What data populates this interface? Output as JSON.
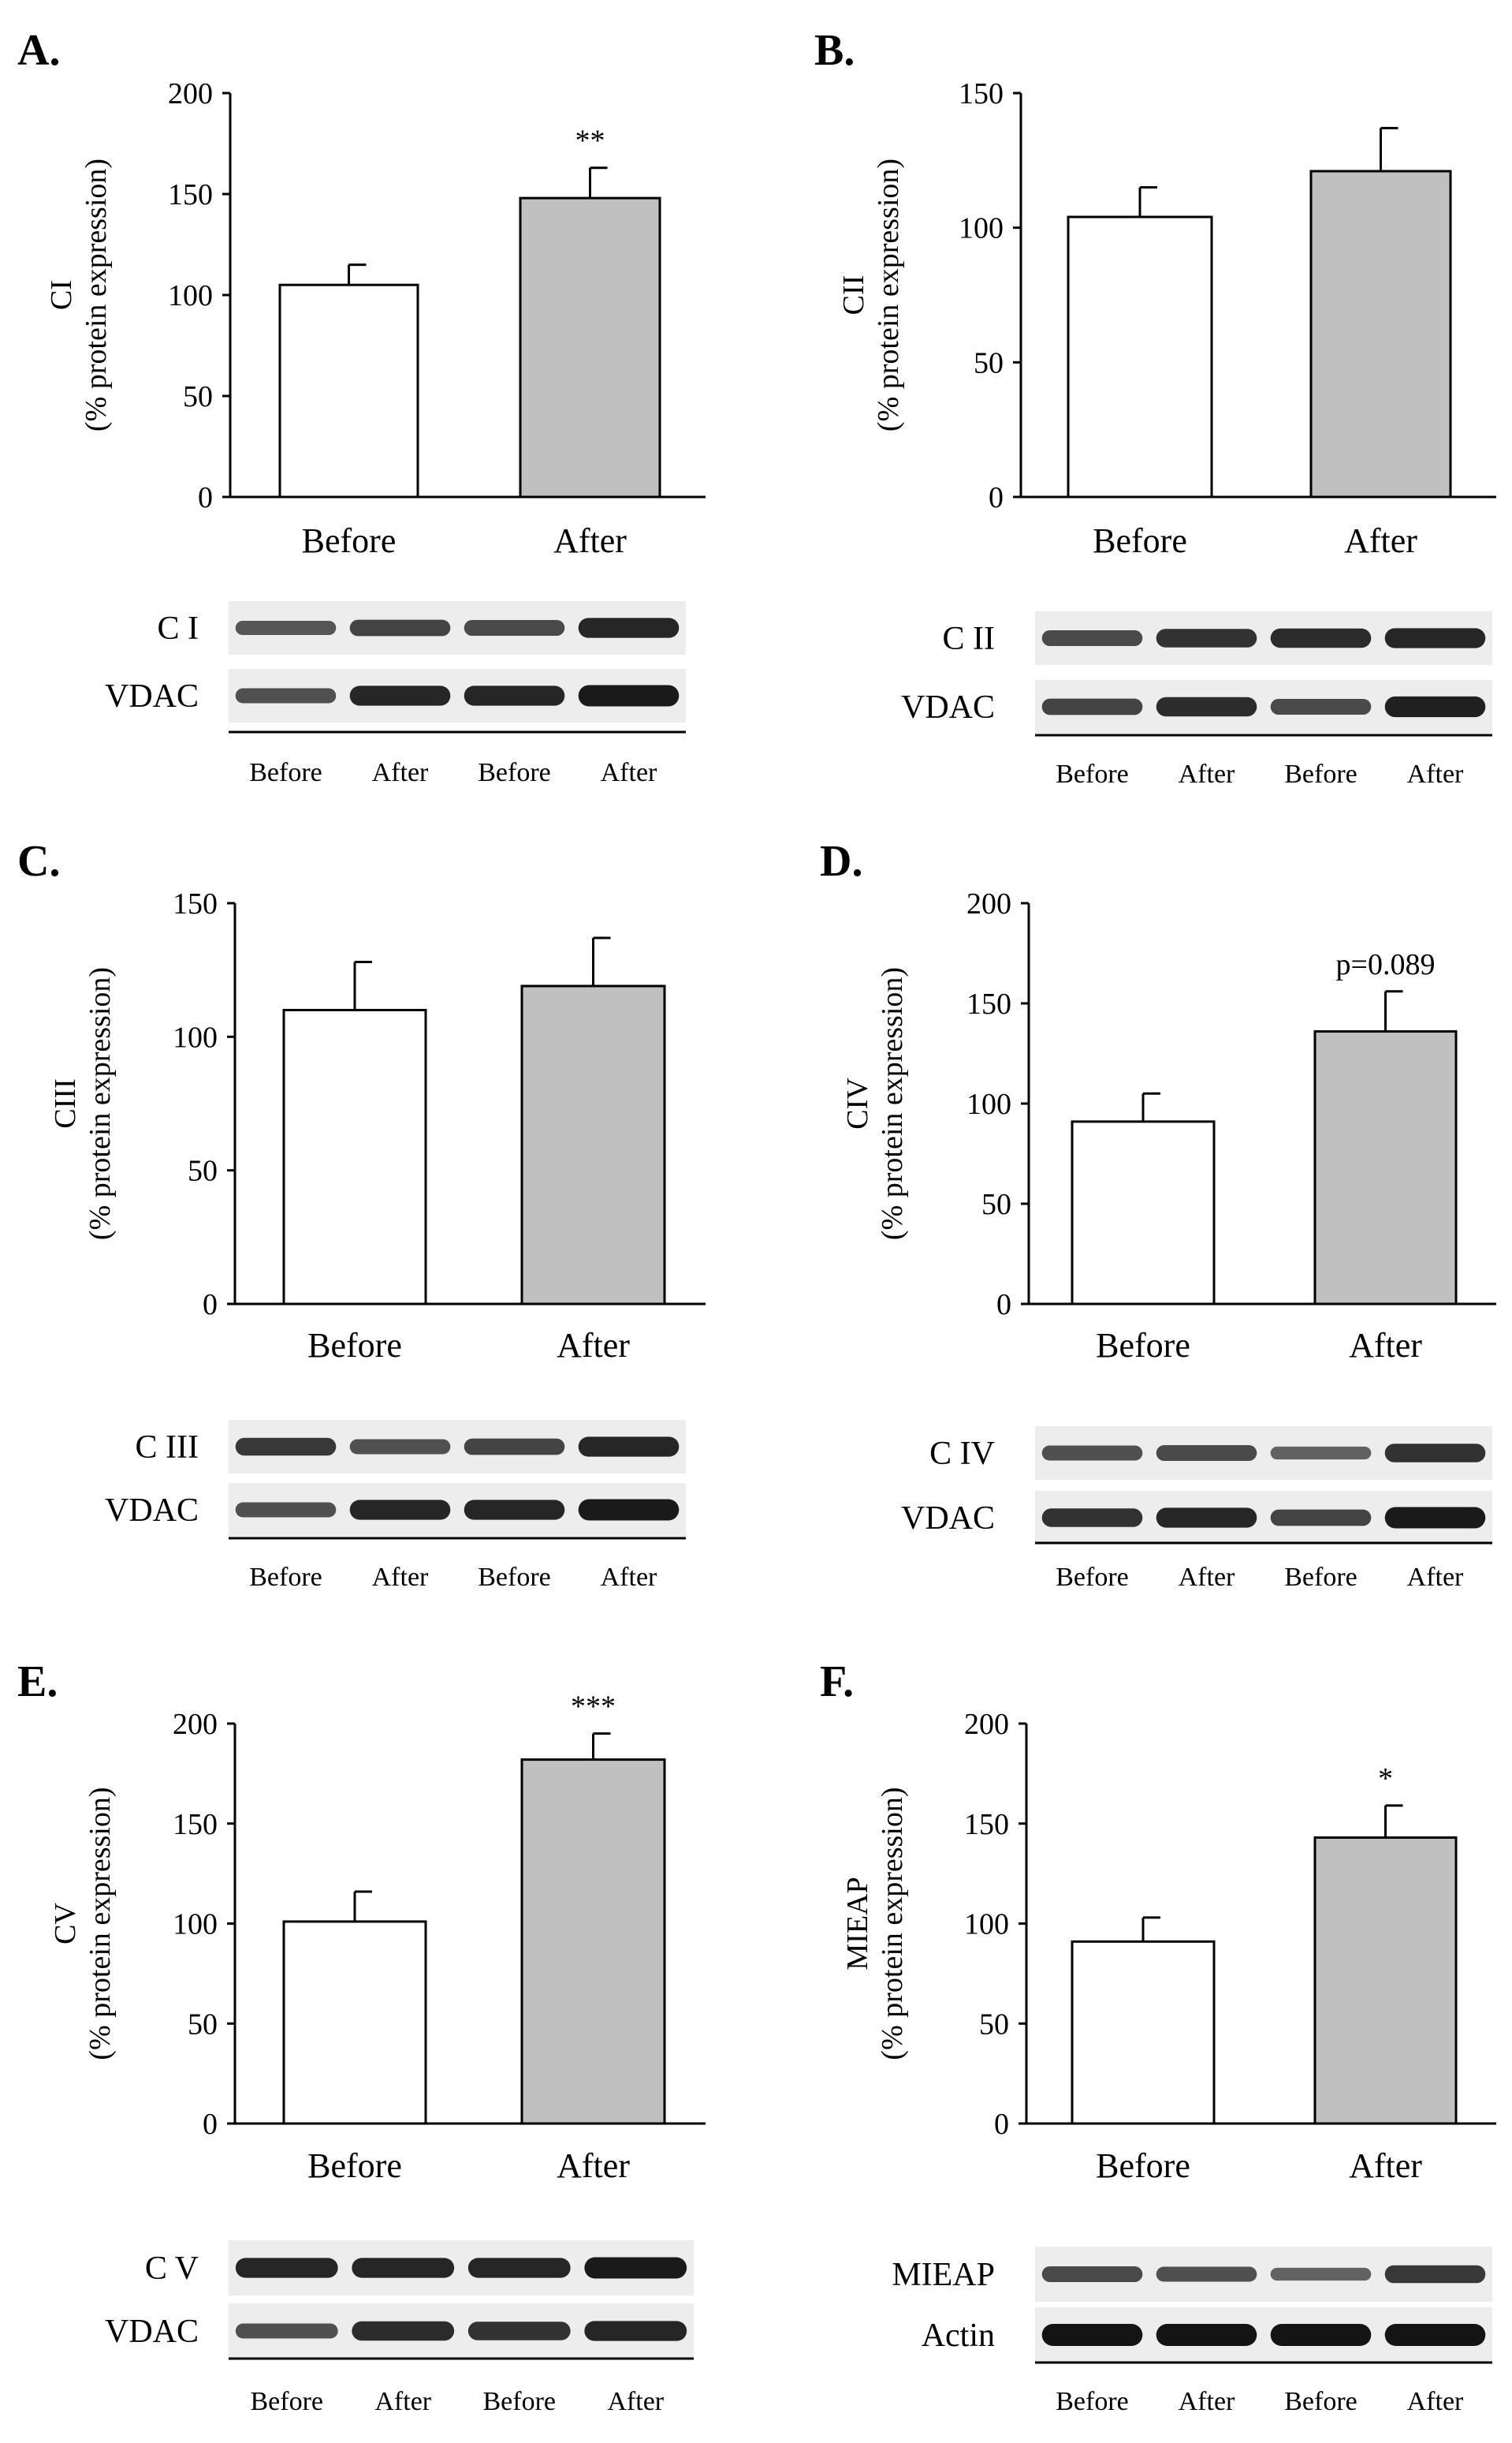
{
  "colors": {
    "before": "#ffffff",
    "after": "#c0c0c0",
    "stroke": "#000000"
  },
  "chart_data": [
    {
      "panel": "A.",
      "type": "bar",
      "ylabel_top": "CI",
      "ylabel_bottom": "(% protein expression)",
      "ylim": [
        0,
        200
      ],
      "yticks": [
        0,
        50,
        100,
        150,
        200
      ],
      "categories": [
        "Before",
        "After"
      ],
      "values": [
        105,
        148
      ],
      "errors": [
        10,
        15
      ],
      "significance": [
        "",
        "**"
      ],
      "blot": {
        "rows": [
          "C I",
          "VDAC"
        ],
        "lanes": [
          "Before",
          "After",
          "Before",
          "After"
        ],
        "intensity": [
          [
            0.45,
            0.6,
            0.55,
            0.85
          ],
          [
            0.5,
            0.85,
            0.85,
            0.95
          ]
        ]
      }
    },
    {
      "panel": "B.",
      "type": "bar",
      "ylabel_top": "CII",
      "ylabel_bottom": "(% protein expression)",
      "ylim": [
        0,
        150
      ],
      "yticks": [
        0,
        50,
        100,
        150
      ],
      "categories": [
        "Before",
        "After"
      ],
      "values": [
        104,
        121
      ],
      "errors": [
        11,
        16
      ],
      "significance": [
        "",
        ""
      ],
      "blot": {
        "rows": [
          "C II",
          "VDAC"
        ],
        "lanes": [
          "Before",
          "After",
          "Before",
          "After"
        ],
        "intensity": [
          [
            0.55,
            0.75,
            0.8,
            0.85
          ],
          [
            0.6,
            0.8,
            0.55,
            0.9
          ]
        ]
      }
    },
    {
      "panel": "C.",
      "type": "bar",
      "ylabel_top": "CIII",
      "ylabel_bottom": "(% protein expression)",
      "ylim": [
        0,
        150
      ],
      "yticks": [
        0,
        50,
        100,
        150
      ],
      "categories": [
        "Before",
        "After"
      ],
      "values": [
        110,
        119
      ],
      "errors": [
        18,
        18
      ],
      "significance": [
        "",
        ""
      ],
      "blot": {
        "rows": [
          "C III",
          "VDAC"
        ],
        "lanes": [
          "Before",
          "After",
          "Before",
          "After"
        ],
        "intensity": [
          [
            0.7,
            0.5,
            0.6,
            0.85
          ],
          [
            0.5,
            0.85,
            0.85,
            0.95
          ]
        ]
      }
    },
    {
      "panel": "D.",
      "type": "bar",
      "ylabel_top": "CIV",
      "ylabel_bottom": "(% protein expression)",
      "ylim": [
        0,
        200
      ],
      "yticks": [
        0,
        50,
        100,
        150,
        200
      ],
      "categories": [
        "Before",
        "After"
      ],
      "values": [
        91,
        136
      ],
      "errors": [
        14,
        20
      ],
      "significance": [
        "",
        "p=0.089"
      ],
      "blot": {
        "rows": [
          "C IV",
          "VDAC"
        ],
        "lanes": [
          "Before",
          "After",
          "Before",
          "After"
        ],
        "intensity": [
          [
            0.5,
            0.55,
            0.35,
            0.75
          ],
          [
            0.75,
            0.85,
            0.6,
            0.95
          ]
        ]
      }
    },
    {
      "panel": "E.",
      "type": "bar",
      "ylabel_top": "CV",
      "ylabel_bottom": "(% protein expression)",
      "ylim": [
        0,
        200
      ],
      "yticks": [
        0,
        50,
        100,
        150,
        200
      ],
      "categories": [
        "Before",
        "After"
      ],
      "values": [
        101,
        182
      ],
      "errors": [
        15,
        13
      ],
      "significance": [
        "",
        "***"
      ],
      "blot": {
        "rows": [
          "C V",
          "VDAC"
        ],
        "lanes": [
          "Before",
          "After",
          "Before",
          "After"
        ],
        "intensity": [
          [
            0.85,
            0.85,
            0.85,
            0.95
          ],
          [
            0.5,
            0.8,
            0.75,
            0.85
          ]
        ]
      }
    },
    {
      "panel": "F.",
      "type": "bar",
      "ylabel_top": "MIEAP",
      "ylabel_bottom": "(% protein expression)",
      "ylim": [
        0,
        200
      ],
      "yticks": [
        0,
        50,
        100,
        150,
        200
      ],
      "categories": [
        "Before",
        "After"
      ],
      "values": [
        91,
        143
      ],
      "errors": [
        12,
        16
      ],
      "significance": [
        "",
        "*"
      ],
      "blot": {
        "rows": [
          "MIEAP",
          "Actin"
        ],
        "lanes": [
          "Before",
          "After",
          "Before",
          "After"
        ],
        "intensity": [
          [
            0.55,
            0.5,
            0.35,
            0.7
          ],
          [
            1.0,
            1.0,
            1.0,
            1.0
          ]
        ]
      }
    }
  ]
}
